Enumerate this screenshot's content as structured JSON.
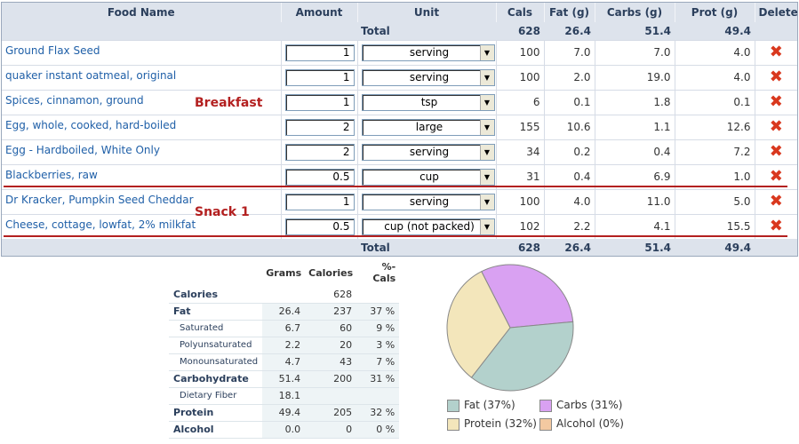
{
  "columns": {
    "food_name": "Food Name",
    "amount": "Amount",
    "unit": "Unit",
    "cals": "Cals",
    "fat": "Fat (g)",
    "carbs": "Carbs (g)",
    "prot": "Prot (g)",
    "delete": "Delete"
  },
  "totals": {
    "label": "Total",
    "cals": "628",
    "fat": "26.4",
    "carbs": "51.4",
    "prot": "49.4"
  },
  "meals": {
    "breakfast": "Breakfast",
    "snack": "Snack 1"
  },
  "foods": [
    {
      "name": "Ground Flax Seed",
      "amount": "1",
      "unit": "serving",
      "cals": "100",
      "fat": "7.0",
      "carbs": "7.0",
      "prot": "4.0"
    },
    {
      "name": "quaker instant oatmeal, original",
      "amount": "1",
      "unit": "serving",
      "cals": "100",
      "fat": "2.0",
      "carbs": "19.0",
      "prot": "4.0"
    },
    {
      "name": "Spices, cinnamon, ground",
      "amount": "1",
      "unit": "tsp",
      "cals": "6",
      "fat": "0.1",
      "carbs": "1.8",
      "prot": "0.1"
    },
    {
      "name": "Egg, whole, cooked, hard-boiled",
      "amount": "2",
      "unit": "large",
      "cals": "155",
      "fat": "10.6",
      "carbs": "1.1",
      "prot": "12.6"
    },
    {
      "name": "Egg - Hardboiled, White Only",
      "amount": "2",
      "unit": "serving",
      "cals": "34",
      "fat": "0.2",
      "carbs": "0.4",
      "prot": "7.2"
    },
    {
      "name": "Blackberries, raw",
      "amount": "0.5",
      "unit": "cup",
      "cals": "31",
      "fat": "0.4",
      "carbs": "6.9",
      "prot": "1.0"
    },
    {
      "name": "Dr Kracker, Pumpkin Seed Cheddar",
      "amount": "1",
      "unit": "serving",
      "cals": "100",
      "fat": "4.0",
      "carbs": "11.0",
      "prot": "5.0"
    },
    {
      "name": "Cheese, cottage, lowfat, 2% milkfat",
      "amount": "0.5",
      "unit": "cup (not packed)",
      "cals": "102",
      "fat": "2.2",
      "carbs": "4.1",
      "prot": "15.5"
    }
  ],
  "icons": {
    "delete": "delete-x-icon",
    "dropdown": "dropdown-arrow-icon"
  },
  "nutrition": {
    "headers": {
      "grams": "Grams",
      "calories": "Calories",
      "pct_cals": "%-Cals"
    },
    "rows": [
      {
        "label": "Calories",
        "grams": "",
        "calories": "628",
        "pct": ""
      },
      {
        "label": "Fat",
        "grams": "26.4",
        "calories": "237",
        "pct": "37 %"
      },
      {
        "label": "Saturated",
        "grams": "6.7",
        "calories": "60",
        "pct": "9 %"
      },
      {
        "label": "Polyunsaturated",
        "grams": "2.2",
        "calories": "20",
        "pct": "3 %"
      },
      {
        "label": "Monounsaturated",
        "grams": "4.7",
        "calories": "43",
        "pct": "7 %"
      },
      {
        "label": "Carbohydrate",
        "grams": "51.4",
        "calories": "200",
        "pct": "31 %"
      },
      {
        "label": "Dietary Fiber",
        "grams": "18.1",
        "calories": "",
        "pct": ""
      },
      {
        "label": "Protein",
        "grams": "49.4",
        "calories": "205",
        "pct": "32 %"
      },
      {
        "label": "Alcohol",
        "grams": "0.0",
        "calories": "0",
        "pct": "0 %"
      }
    ]
  },
  "chart_data": {
    "type": "pie",
    "slices": [
      {
        "label": "Fat",
        "legend": "Fat (37%)",
        "value": 37,
        "color": "#b3d1cc"
      },
      {
        "label": "Protein",
        "legend": "Protein (32%)",
        "value": 32,
        "color": "#f3e6bb"
      },
      {
        "label": "Carbs",
        "legend": "Carbs (31%)",
        "value": 31,
        "color": "#d9a1f2"
      },
      {
        "label": "Alcohol",
        "legend": "Alcohol (0%)",
        "value": 0,
        "color": "#f3c9a1"
      }
    ]
  },
  "colors": {
    "header_bg": "#dde3ec",
    "link": "#2060a8",
    "meal_label": "#b32020",
    "delete": "#d9381e"
  }
}
